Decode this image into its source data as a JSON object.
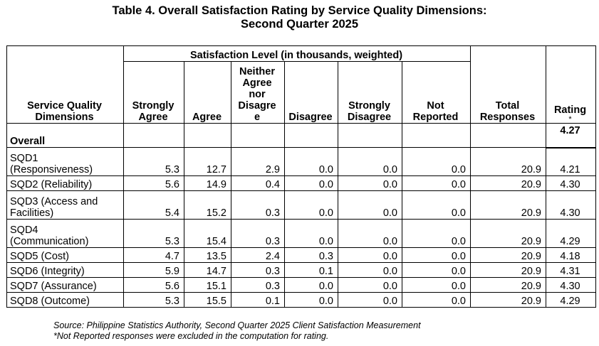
{
  "title": {
    "line1": "Table 4. Overall Satisfaction Rating by Service Quality Dimensions:",
    "line2": "Second Quarter 2025"
  },
  "headers": {
    "dimension": "Service Quality Dimensions",
    "group": "Satisfaction Level (in thousands, weighted)",
    "strongly_agree": "Strongly Agree",
    "agree": "Agree",
    "neither_lines": [
      "Neither",
      "Agree",
      "nor",
      "Disagre",
      "e"
    ],
    "disagree": "Disagree",
    "strongly_disagree": "Strongly Disagree",
    "not_reported": "Not Reported",
    "total": "Total Responses",
    "rating": "Rating",
    "rating_mark": "*"
  },
  "overall": {
    "label": "Overall",
    "rating": "4.27"
  },
  "rows": [
    {
      "name": "SQD1 (Responsiveness)",
      "sa": "5.3",
      "a": "12.7",
      "n": "2.9",
      "d": "0.0",
      "sd": "0.0",
      "nr": "0.0",
      "total": "20.9",
      "rating": "4.21"
    },
    {
      "name": "SQD2 (Reliability)",
      "sa": "5.6",
      "a": "14.9",
      "n": "0.4",
      "d": "0.0",
      "sd": "0.0",
      "nr": "0.0",
      "total": "20.9",
      "rating": "4.30"
    },
    {
      "name": "SQD3 (Access and Facilities)",
      "sa": "5.4",
      "a": "15.2",
      "n": "0.3",
      "d": "0.0",
      "sd": "0.0",
      "nr": "0.0",
      "total": "20.9",
      "rating": "4.30"
    },
    {
      "name": "SQD4 (Communication)",
      "sa": "5.3",
      "a": "15.4",
      "n": "0.3",
      "d": "0.0",
      "sd": "0.0",
      "nr": "0.0",
      "total": "20.9",
      "rating": "4.29"
    },
    {
      "name": "SQD5 (Cost)",
      "sa": "4.7",
      "a": "13.5",
      "n": "2.4",
      "d": "0.3",
      "sd": "0.0",
      "nr": "0.0",
      "total": "20.9",
      "rating": "4.18"
    },
    {
      "name": "SQD6 (Integrity)",
      "sa": "5.9",
      "a": "14.7",
      "n": "0.3",
      "d": "0.1",
      "sd": "0.0",
      "nr": "0.0",
      "total": "20.9",
      "rating": "4.31"
    },
    {
      "name": "SQD7 (Assurance)",
      "sa": "5.6",
      "a": "15.1",
      "n": "0.3",
      "d": "0.0",
      "sd": "0.0",
      "nr": "0.0",
      "total": "20.9",
      "rating": "4.30"
    },
    {
      "name": "SQD8 (Outcome)",
      "sa": "5.3",
      "a": "15.5",
      "n": "0.1",
      "d": "0.0",
      "sd": "0.0",
      "nr": "0.0",
      "total": "20.9",
      "rating": "4.29"
    }
  ],
  "notes": {
    "source": "Source: Philippine Statistics Authority, Second Quarter 2025 Client Satisfaction Measurement",
    "footnote": "*Not Reported responses were excluded in the computation for rating."
  }
}
